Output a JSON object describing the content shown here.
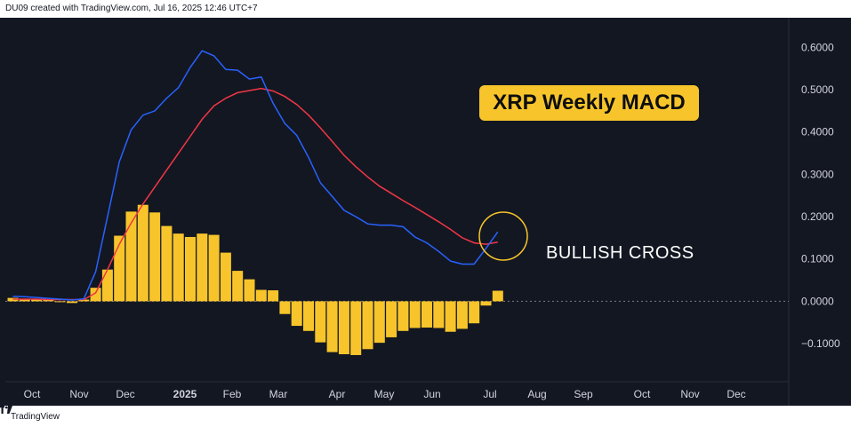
{
  "header": {
    "attribution": "DU09 created with TradingView.com, Jul 16, 2025 12:46 UTC+7"
  },
  "footer": {
    "brand": "TradingView"
  },
  "colors": {
    "background": "#131722",
    "macd_line": "#2962ff",
    "signal_line": "#f23645",
    "histogram": "#f7c52b",
    "annotation_circle": "#f7c52b",
    "axis_text": "#d1d4dc"
  },
  "chart_data": {
    "type": "bar",
    "title": "XRP Weekly MACD",
    "annotation": "BULLISH CROSS",
    "y_ticks": [
      "0.6000",
      "0.5000",
      "0.4000",
      "0.3000",
      "0.2000",
      "0.1000",
      "0.0000",
      "−0.1000"
    ],
    "ylim": [
      -0.19,
      0.67
    ],
    "x_labels": [
      {
        "label": "Oct",
        "bold": false
      },
      {
        "label": "Nov",
        "bold": false
      },
      {
        "label": "Dec",
        "bold": false
      },
      {
        "label": "2025",
        "bold": true
      },
      {
        "label": "Feb",
        "bold": false
      },
      {
        "label": "Mar",
        "bold": false
      },
      {
        "label": "Apr",
        "bold": false
      },
      {
        "label": "May",
        "bold": false
      },
      {
        "label": "Jun",
        "bold": false
      },
      {
        "label": "Jul",
        "bold": false
      },
      {
        "label": "Aug",
        "bold": false
      },
      {
        "label": "Sep",
        "bold": false
      },
      {
        "label": "Oct",
        "bold": false
      },
      {
        "label": "Nov",
        "bold": false
      },
      {
        "label": "Dec",
        "bold": false
      }
    ],
    "histogram": [
      0.008,
      0.006,
      0.004,
      0.003,
      -0.002,
      -0.004,
      0.004,
      0.032,
      0.075,
      0.155,
      0.212,
      0.228,
      0.21,
      0.178,
      0.16,
      0.152,
      0.16,
      0.157,
      0.115,
      0.072,
      0.052,
      0.027,
      0.026,
      -0.03,
      -0.058,
      -0.07,
      -0.097,
      -0.12,
      -0.125,
      -0.127,
      -0.113,
      -0.098,
      -0.085,
      -0.07,
      -0.063,
      -0.062,
      -0.063,
      -0.072,
      -0.065,
      -0.052,
      -0.01,
      0.025
    ],
    "series": [
      {
        "key": "macd",
        "values": [
          0.012,
          0.011,
          0.009,
          0.007,
          0.005,
          0.003,
          0.006,
          0.07,
          0.2,
          0.33,
          0.405,
          0.44,
          0.45,
          0.48,
          0.505,
          0.553,
          0.592,
          0.58,
          0.548,
          0.546,
          0.525,
          0.53,
          0.468,
          0.42,
          0.392,
          0.34,
          0.28,
          0.248,
          0.215,
          0.2,
          0.183,
          0.18,
          0.18,
          0.176,
          0.152,
          0.138,
          0.118,
          0.095,
          0.088,
          0.088,
          0.125,
          0.164
        ]
      },
      {
        "key": "signal",
        "values": [
          0.005,
          0.005,
          0.005,
          0.004,
          0.004,
          0.004,
          0.004,
          0.02,
          0.075,
          0.135,
          0.185,
          0.23,
          0.27,
          0.31,
          0.35,
          0.39,
          0.43,
          0.462,
          0.48,
          0.493,
          0.498,
          0.503,
          0.497,
          0.484,
          0.465,
          0.44,
          0.41,
          0.378,
          0.345,
          0.318,
          0.294,
          0.272,
          0.255,
          0.238,
          0.222,
          0.205,
          0.188,
          0.17,
          0.15,
          0.138,
          0.135,
          0.14
        ]
      }
    ]
  }
}
